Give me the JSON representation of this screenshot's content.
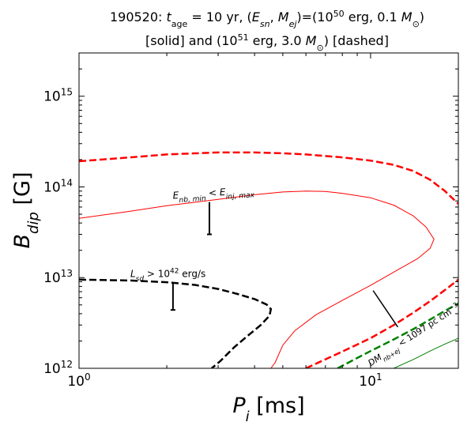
{
  "chart_data": {
    "type": "line",
    "title_parts": {
      "line1_prefix": "190520: ",
      "t_symbol": "t",
      "t_subscript": "age",
      "t_value": " = 10 yr, (",
      "E_symbol": "E",
      "E_subscript": "sn",
      "comma_sep": ", ",
      "M_symbol": "M",
      "M_subscript": "ej",
      "equals_open": ")=(10",
      "exp_50": "50",
      "mid_text": " erg, 0.1 ",
      "Msun_symbol": "M",
      "sun_glyph": "⊙",
      "close_paren": ")",
      "line2_prefix": "[solid] and (10",
      "exp_51": "51",
      "line2_mid": " erg, 3.0 ",
      "line2_suffix": ") [dashed]"
    },
    "xaxis": {
      "label_symbol": "P",
      "label_subscript": "i",
      "label_unit": " [ms]",
      "scale": "log",
      "range": [
        1,
        20
      ],
      "tick_labels": [
        {
          "value": 1,
          "base": "10",
          "exp": "0"
        },
        {
          "value": 10,
          "base": "10",
          "exp": "1"
        }
      ]
    },
    "yaxis": {
      "label_symbol": "B",
      "label_subscript": "dip",
      "label_unit": " [G]",
      "scale": "log",
      "range": [
        1000000000000.0,
        3000000000000000.0
      ],
      "tick_labels": [
        {
          "value": 1000000000000.0,
          "base": "10",
          "exp": "12"
        },
        {
          "value": 10000000000000.0,
          "base": "10",
          "exp": "13"
        },
        {
          "value": 100000000000000.0,
          "base": "10",
          "exp": "14"
        },
        {
          "value": 1000000000000000.0,
          "base": "10",
          "exp": "15"
        }
      ]
    },
    "grid": false,
    "series": [
      {
        "color": "#ff0000",
        "style": "solid",
        "linewidth": 1,
        "points": [
          [
            1.0,
            45000000000000.0
          ],
          [
            1.5,
            54000000000000.0
          ],
          [
            2.0,
            62000000000000.0
          ],
          [
            3.0,
            73000000000000.0
          ],
          [
            4.0,
            82000000000000.0
          ],
          [
            5.0,
            88000000000000.0
          ],
          [
            6.0,
            90000000000000.0
          ],
          [
            7.0,
            89000000000000.0
          ],
          [
            8.0,
            85000000000000.0
          ],
          [
            10.0,
            76000000000000.0
          ],
          [
            12.0,
            63000000000000.0
          ],
          [
            14.0,
            48000000000000.0
          ],
          [
            15.5,
            36000000000000.0
          ],
          [
            16.5,
            26500000000000.0
          ],
          [
            16.0,
            21000000000000.0
          ],
          [
            14.5,
            16200000000000.0
          ],
          [
            12.0,
            11500000000000.0
          ],
          [
            10.0,
            8200000000000.0
          ],
          [
            8.0,
            5600000000000.0
          ],
          [
            6.5,
            3900000000000.0
          ],
          [
            5.5,
            2600000000000.0
          ],
          [
            5.0,
            1800000000000.0
          ],
          [
            4.7,
            1150000000000.0
          ],
          [
            4.55,
            1000000000000.0
          ]
        ]
      },
      {
        "color": "#ff0000",
        "style": "dashed",
        "linewidth": 2.5,
        "points": [
          [
            1.0,
            192000000000000.0
          ],
          [
            1.5,
            212000000000000.0
          ],
          [
            2.0,
            228000000000000.0
          ],
          [
            3.0,
            240000000000000.0
          ],
          [
            4.0,
            240000000000000.0
          ],
          [
            5.0,
            235000000000000.0
          ],
          [
            6.0,
            228000000000000.0
          ],
          [
            8.0,
            212000000000000.0
          ],
          [
            10.0,
            195000000000000.0
          ],
          [
            12.0,
            175000000000000.0
          ],
          [
            14.0,
            150000000000000.0
          ],
          [
            16.0,
            120000000000000.0
          ],
          [
            18.0,
            90000000000000.0
          ],
          [
            20.0,
            65000000000000.0
          ]
        ]
      },
      {
        "color": "#ff0000",
        "style": "dashed",
        "linewidth": 2.5,
        "points": [
          [
            6.0,
            1000000000000.0
          ],
          [
            8.0,
            1530000000000.0
          ],
          [
            10.0,
            2150000000000.0
          ],
          [
            12.0,
            3000000000000.0
          ],
          [
            14.0,
            4100000000000.0
          ],
          [
            16.0,
            5500000000000.0
          ],
          [
            18.0,
            7300000000000.0
          ],
          [
            20.0,
            9500000000000.0
          ]
        ]
      },
      {
        "color": "#008000",
        "style": "dashed",
        "linewidth": 2.5,
        "points": [
          [
            7.7,
            1000000000000.0
          ],
          [
            9.0,
            1300000000000.0
          ],
          [
            10.0,
            1550000000000.0
          ],
          [
            12.0,
            2080000000000.0
          ],
          [
            14.0,
            2700000000000.0
          ],
          [
            16.0,
            3450000000000.0
          ],
          [
            18.0,
            4300000000000.0
          ],
          [
            20.0,
            5200000000000.0
          ]
        ]
      },
      {
        "color": "#008000",
        "style": "solid",
        "linewidth": 1,
        "points": [
          [
            12.0,
            1000000000000.0
          ],
          [
            14.0,
            1250000000000.0
          ],
          [
            16.0,
            1550000000000.0
          ],
          [
            18.0,
            1850000000000.0
          ],
          [
            20.0,
            2150000000000.0
          ]
        ]
      },
      {
        "color": "#000000",
        "style": "dashed",
        "linewidth": 2.5,
        "points": [
          [
            1.0,
            9500000000000.0
          ],
          [
            1.5,
            9300000000000.0
          ],
          [
            2.0,
            8900000000000.0
          ],
          [
            2.5,
            8300000000000.0
          ],
          [
            3.0,
            7500000000000.0
          ],
          [
            3.5,
            6600000000000.0
          ],
          [
            4.0,
            5800000000000.0
          ],
          [
            4.4,
            5050000000000.0
          ],
          [
            4.55,
            4500000000000.0
          ],
          [
            4.5,
            3800000000000.0
          ],
          [
            4.2,
            3000000000000.0
          ],
          [
            3.8,
            2300000000000.0
          ],
          [
            3.4,
            1700000000000.0
          ],
          [
            3.05,
            1200000000000.0
          ],
          [
            2.85,
            1000000000000.0
          ]
        ]
      }
    ],
    "error_bars": [
      {
        "x": 2.8,
        "y_top": 68000000000000.0,
        "y_bottom": 30000000000000.0
      },
      {
        "x": 2.1,
        "y_top": 8800000000000.0,
        "y_bottom": 4400000000000.0
      }
    ],
    "slant_line": {
      "x1": 10.2,
      "y1": 7200000000000.0,
      "x2": 12.4,
      "y2": 2850000000000.0
    },
    "annotations": [
      {
        "parts": [
          {
            "t": "E",
            "style": "italic"
          },
          {
            "t": "nb, min",
            "sub": true
          },
          {
            "t": " < "
          },
          {
            "t": "E",
            "style": "italic"
          },
          {
            "t": "inj, max",
            "sub": true
          }
        ],
        "x": 2.1,
        "y": 74000000000000.0,
        "rotate": -4,
        "font_size": 12
      },
      {
        "parts": [
          {
            "t": "L",
            "style": "italic"
          },
          {
            "t": "sd",
            "sub": true
          },
          {
            "t": " > 10"
          },
          {
            "t": "42",
            "sup": true
          },
          {
            "t": " erg/s"
          }
        ],
        "x": 1.5,
        "y": 10200000000000.0,
        "rotate": 0,
        "font_size": 12
      },
      {
        "parts": [
          {
            "t": "DM",
            "style": "italic"
          },
          {
            "t": "nb+ej",
            "sub": true
          },
          {
            "t": " < 1097 pc cm"
          },
          {
            "t": "−3",
            "sup": true
          }
        ],
        "x": 10.0,
        "y": 1050000000000.0,
        "rotate": -33,
        "font_size": 11
      }
    ]
  }
}
